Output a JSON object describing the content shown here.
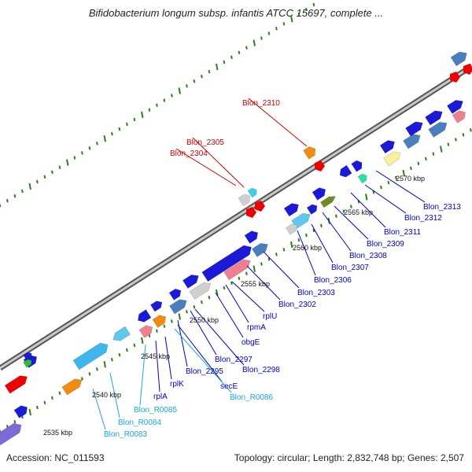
{
  "title": "Bifidobacterium longum subsp. infantis ATCC 15697, complete ...",
  "footer": {
    "accession": "Accession: NC_011593",
    "topology": "Topology: circular; Length: 2,832,748 bp; Genes: 2,507"
  },
  "colors": {
    "backbone": "#909090",
    "cds": "#1a1ad8",
    "rrna_trna": "#ee0000",
    "label_red": "#cc0000",
    "label_blue": "#0000cc",
    "label_cyan": "#1aa8d8",
    "tick": "#2e7d1e"
  },
  "ticks": [
    "2535 kbp",
    "2540 kbp",
    "2545 kbp",
    "2550 kbp",
    "2555 kbp",
    "2560 kbp",
    "2565 kbp",
    "2570 kbp"
  ],
  "gene_labels": [
    {
      "text": "Blon_2310",
      "tone": "red"
    },
    {
      "text": "Blon_2305",
      "tone": "red"
    },
    {
      "text": "Blon_2304",
      "tone": "red"
    },
    {
      "text": "Blon_2313",
      "tone": "blue"
    },
    {
      "text": "Blon_2312",
      "tone": "blue"
    },
    {
      "text": "Blon_2311",
      "tone": "blue"
    },
    {
      "text": "Blon_2309",
      "tone": "blue"
    },
    {
      "text": "Blon_2308",
      "tone": "blue"
    },
    {
      "text": "Blon_2307",
      "tone": "blue"
    },
    {
      "text": "Blon_2306",
      "tone": "blue"
    },
    {
      "text": "Blon_2303",
      "tone": "blue"
    },
    {
      "text": "Blon_2302",
      "tone": "blue"
    },
    {
      "text": "rplU",
      "tone": "blue"
    },
    {
      "text": "rpmA",
      "tone": "blue"
    },
    {
      "text": "obgE",
      "tone": "blue"
    },
    {
      "text": "Blon_2298",
      "tone": "blue"
    },
    {
      "text": "Blon_2297",
      "tone": "blue"
    },
    {
      "text": "Blon_2295",
      "tone": "blue"
    },
    {
      "text": "secE",
      "tone": "blue"
    },
    {
      "text": "Blon_R0086",
      "tone": "cyan"
    },
    {
      "text": "rplK",
      "tone": "blue"
    },
    {
      "text": "rplA",
      "tone": "blue"
    },
    {
      "text": "Blon_R0085",
      "tone": "cyan"
    },
    {
      "text": "Blon_R0084",
      "tone": "cyan"
    },
    {
      "text": "Blon_R0083",
      "tone": "cyan"
    }
  ]
}
